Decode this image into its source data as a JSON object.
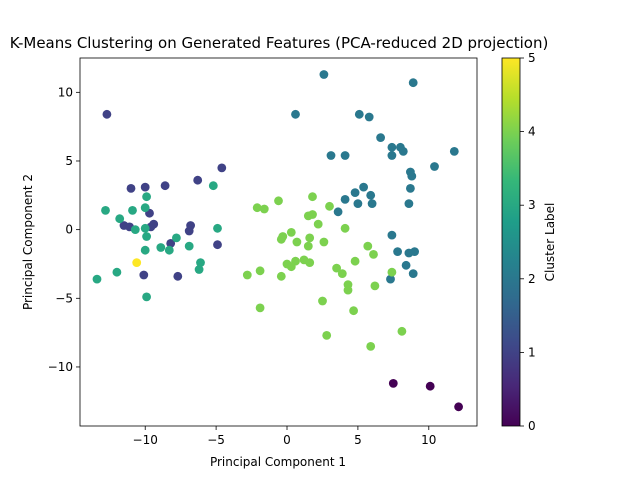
{
  "chart_data": {
    "type": "scatter",
    "title": "K-Means Clustering on Generated Features (PCA-reduced 2D projection)",
    "xlabel": "Principal Component 1",
    "ylabel": "Principal Component 2",
    "xlim": [
      -14.6,
      13.4
    ],
    "ylim": [
      -14.3,
      12.5
    ],
    "xticks": [
      -10,
      -5,
      0,
      5,
      10
    ],
    "yticks": [
      -10,
      -5,
      0,
      5,
      10
    ],
    "grid": false,
    "colorbar": {
      "label": "Cluster Label",
      "range": [
        0,
        5
      ],
      "ticks": [
        0,
        1,
        2,
        3,
        4,
        5
      ],
      "colormap": [
        "#440154",
        "#482878",
        "#3e4989",
        "#31688e",
        "#26828e",
        "#1f9e89",
        "#35b779",
        "#6ece58",
        "#b5de2b",
        "#fde725"
      ]
    },
    "points": [
      {
        "x": 7.5,
        "y": -11.2,
        "cluster": 0
      },
      {
        "x": 10.1,
        "y": -11.4,
        "cluster": 0
      },
      {
        "x": 12.1,
        "y": -12.9,
        "cluster": 0
      },
      {
        "x": -12.7,
        "y": 8.4,
        "cluster": 1
      },
      {
        "x": -11.0,
        "y": 3.0,
        "cluster": 1
      },
      {
        "x": -10.0,
        "y": 3.1,
        "cluster": 1
      },
      {
        "x": -8.6,
        "y": 3.2,
        "cluster": 1
      },
      {
        "x": -6.3,
        "y": 3.6,
        "cluster": 1
      },
      {
        "x": -4.6,
        "y": 4.5,
        "cluster": 1
      },
      {
        "x": -11.5,
        "y": 0.3,
        "cluster": 1
      },
      {
        "x": -11.1,
        "y": 0.2,
        "cluster": 1
      },
      {
        "x": -9.7,
        "y": 1.2,
        "cluster": 1
      },
      {
        "x": -9.4,
        "y": 0.4,
        "cluster": 1
      },
      {
        "x": -9.6,
        "y": 0.2,
        "cluster": 1
      },
      {
        "x": -6.8,
        "y": 0.3,
        "cluster": 1
      },
      {
        "x": -6.9,
        "y": -0.1,
        "cluster": 1
      },
      {
        "x": -8.2,
        "y": -1.0,
        "cluster": 1
      },
      {
        "x": -4.9,
        "y": -1.1,
        "cluster": 1
      },
      {
        "x": -10.1,
        "y": -3.3,
        "cluster": 1
      },
      {
        "x": -7.7,
        "y": -3.4,
        "cluster": 1
      },
      {
        "x": 2.6,
        "y": 11.3,
        "cluster": 2
      },
      {
        "x": 8.9,
        "y": 10.7,
        "cluster": 2
      },
      {
        "x": 0.6,
        "y": 8.4,
        "cluster": 2
      },
      {
        "x": 5.1,
        "y": 8.4,
        "cluster": 2
      },
      {
        "x": 5.8,
        "y": 8.2,
        "cluster": 2
      },
      {
        "x": 6.6,
        "y": 6.7,
        "cluster": 2
      },
      {
        "x": 7.4,
        "y": 6.0,
        "cluster": 2
      },
      {
        "x": 8.0,
        "y": 6.0,
        "cluster": 2
      },
      {
        "x": 7.4,
        "y": 5.4,
        "cluster": 2
      },
      {
        "x": 8.2,
        "y": 5.7,
        "cluster": 2
      },
      {
        "x": 11.8,
        "y": 5.7,
        "cluster": 2
      },
      {
        "x": 10.4,
        "y": 4.6,
        "cluster": 2
      },
      {
        "x": 3.1,
        "y": 5.4,
        "cluster": 2
      },
      {
        "x": 4.1,
        "y": 5.4,
        "cluster": 2
      },
      {
        "x": 8.7,
        "y": 4.2,
        "cluster": 2
      },
      {
        "x": 8.8,
        "y": 3.9,
        "cluster": 2
      },
      {
        "x": 8.7,
        "y": 3.0,
        "cluster": 2
      },
      {
        "x": 5.4,
        "y": 3.1,
        "cluster": 2
      },
      {
        "x": 4.8,
        "y": 2.7,
        "cluster": 2
      },
      {
        "x": 5.9,
        "y": 2.5,
        "cluster": 2
      },
      {
        "x": 4.1,
        "y": 2.2,
        "cluster": 2
      },
      {
        "x": 5.0,
        "y": 1.9,
        "cluster": 2
      },
      {
        "x": 6.0,
        "y": 1.9,
        "cluster": 2
      },
      {
        "x": 8.6,
        "y": 1.9,
        "cluster": 2
      },
      {
        "x": 3.6,
        "y": 1.3,
        "cluster": 2
      },
      {
        "x": 7.4,
        "y": -0.4,
        "cluster": 2
      },
      {
        "x": 7.8,
        "y": -1.6,
        "cluster": 2
      },
      {
        "x": 8.6,
        "y": -1.7,
        "cluster": 2
      },
      {
        "x": 9.0,
        "y": -1.6,
        "cluster": 2
      },
      {
        "x": 8.4,
        "y": -2.6,
        "cluster": 2
      },
      {
        "x": 8.9,
        "y": -3.2,
        "cluster": 2
      },
      {
        "x": 7.3,
        "y": -3.6,
        "cluster": 2
      },
      {
        "x": -12.8,
        "y": 1.4,
        "cluster": 3
      },
      {
        "x": -11.8,
        "y": 0.8,
        "cluster": 3
      },
      {
        "x": -10.9,
        "y": 1.4,
        "cluster": 3
      },
      {
        "x": -9.9,
        "y": 2.4,
        "cluster": 3
      },
      {
        "x": -10.0,
        "y": 1.6,
        "cluster": 3
      },
      {
        "x": -5.2,
        "y": 3.2,
        "cluster": 3
      },
      {
        "x": -10.7,
        "y": 0.0,
        "cluster": 3
      },
      {
        "x": -10.0,
        "y": 0.1,
        "cluster": 3
      },
      {
        "x": -9.9,
        "y": -0.5,
        "cluster": 3
      },
      {
        "x": -4.9,
        "y": 0.1,
        "cluster": 3
      },
      {
        "x": -7.8,
        "y": -0.6,
        "cluster": 3
      },
      {
        "x": -8.9,
        "y": -1.3,
        "cluster": 3
      },
      {
        "x": -8.3,
        "y": -1.5,
        "cluster": 3
      },
      {
        "x": -10.0,
        "y": -1.5,
        "cluster": 3
      },
      {
        "x": -6.9,
        "y": -1.2,
        "cluster": 3
      },
      {
        "x": -6.1,
        "y": -2.4,
        "cluster": 3
      },
      {
        "x": -6.2,
        "y": -2.9,
        "cluster": 3
      },
      {
        "x": -12.0,
        "y": -3.1,
        "cluster": 3
      },
      {
        "x": -13.4,
        "y": -3.6,
        "cluster": 3
      },
      {
        "x": -9.9,
        "y": -4.9,
        "cluster": 3
      },
      {
        "x": 1.8,
        "y": 2.4,
        "cluster": 4
      },
      {
        "x": 3.0,
        "y": 1.7,
        "cluster": 4
      },
      {
        "x": -2.1,
        "y": 1.6,
        "cluster": 4
      },
      {
        "x": -1.6,
        "y": 1.5,
        "cluster": 4
      },
      {
        "x": -0.6,
        "y": 2.1,
        "cluster": 4
      },
      {
        "x": 1.5,
        "y": 1.0,
        "cluster": 4
      },
      {
        "x": 1.8,
        "y": 1.1,
        "cluster": 4
      },
      {
        "x": 2.2,
        "y": 0.4,
        "cluster": 4
      },
      {
        "x": 0.3,
        "y": -0.2,
        "cluster": 4
      },
      {
        "x": -0.3,
        "y": -0.5,
        "cluster": 4
      },
      {
        "x": -0.4,
        "y": -0.7,
        "cluster": 4
      },
      {
        "x": 0.7,
        "y": -0.9,
        "cluster": 4
      },
      {
        "x": 1.6,
        "y": -0.6,
        "cluster": 4
      },
      {
        "x": 1.5,
        "y": -1.2,
        "cluster": 4
      },
      {
        "x": 2.6,
        "y": -0.9,
        "cluster": 4
      },
      {
        "x": 4.1,
        "y": 0.1,
        "cluster": 4
      },
      {
        "x": 5.7,
        "y": -1.2,
        "cluster": 4
      },
      {
        "x": 6.1,
        "y": -1.8,
        "cluster": 4
      },
      {
        "x": 0.6,
        "y": -2.3,
        "cluster": 4
      },
      {
        "x": 0.0,
        "y": -2.5,
        "cluster": 4
      },
      {
        "x": 0.3,
        "y": -2.7,
        "cluster": 4
      },
      {
        "x": 1.2,
        "y": -2.2,
        "cluster": 4
      },
      {
        "x": 1.6,
        "y": -2.4,
        "cluster": 4
      },
      {
        "x": 4.8,
        "y": -2.3,
        "cluster": 4
      },
      {
        "x": 3.5,
        "y": -2.8,
        "cluster": 4
      },
      {
        "x": 3.9,
        "y": -3.2,
        "cluster": 4
      },
      {
        "x": -1.9,
        "y": -3.0,
        "cluster": 4
      },
      {
        "x": -2.8,
        "y": -3.3,
        "cluster": 4
      },
      {
        "x": -0.4,
        "y": -3.4,
        "cluster": 4
      },
      {
        "x": 7.4,
        "y": -3.1,
        "cluster": 4
      },
      {
        "x": 4.3,
        "y": -4.0,
        "cluster": 4
      },
      {
        "x": 4.3,
        "y": -4.4,
        "cluster": 4
      },
      {
        "x": 6.2,
        "y": -4.1,
        "cluster": 4
      },
      {
        "x": 2.5,
        "y": -5.2,
        "cluster": 4
      },
      {
        "x": -1.9,
        "y": -5.7,
        "cluster": 4
      },
      {
        "x": 4.7,
        "y": -5.9,
        "cluster": 4
      },
      {
        "x": 8.1,
        "y": -7.4,
        "cluster": 4
      },
      {
        "x": 2.8,
        "y": -7.7,
        "cluster": 4
      },
      {
        "x": 5.9,
        "y": -8.5,
        "cluster": 4
      },
      {
        "x": -10.6,
        "y": -2.4,
        "cluster": 5
      }
    ]
  }
}
